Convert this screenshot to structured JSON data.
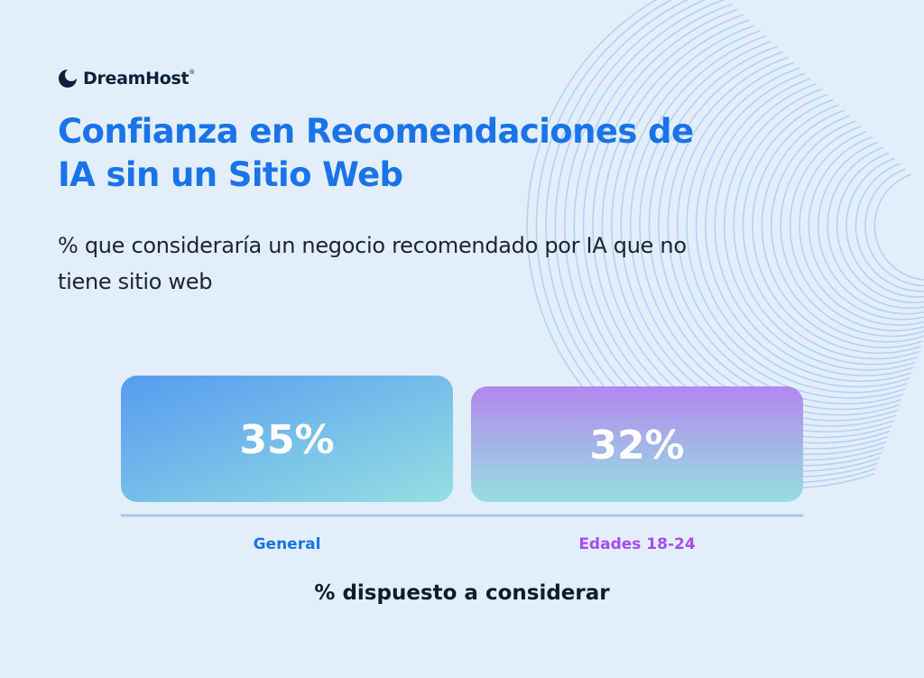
{
  "brand": {
    "name": "DreamHost",
    "trademark": "®",
    "icon": "crescent-moon-icon"
  },
  "colors": {
    "background": "#e3eefb",
    "title": "#1a73e8",
    "general_label": "#1a73e8",
    "ages_label": "#a64bf4",
    "baseline": "#a9c8f2"
  },
  "chart_data": {
    "type": "bar",
    "title": "Confianza en Recomendaciones de IA sin un Sitio Web",
    "subtitle": "% que consideraría un negocio recomendado por IA que no tiene sitio web",
    "categories": [
      "General",
      "Edades 18-24"
    ],
    "values": [
      35,
      32
    ],
    "value_labels": [
      "35%",
      "32%"
    ],
    "xlabel": "% dispuesto a considerar",
    "ylabel": "",
    "ylim": [
      0,
      35
    ],
    "grid": false,
    "legend": "none"
  }
}
